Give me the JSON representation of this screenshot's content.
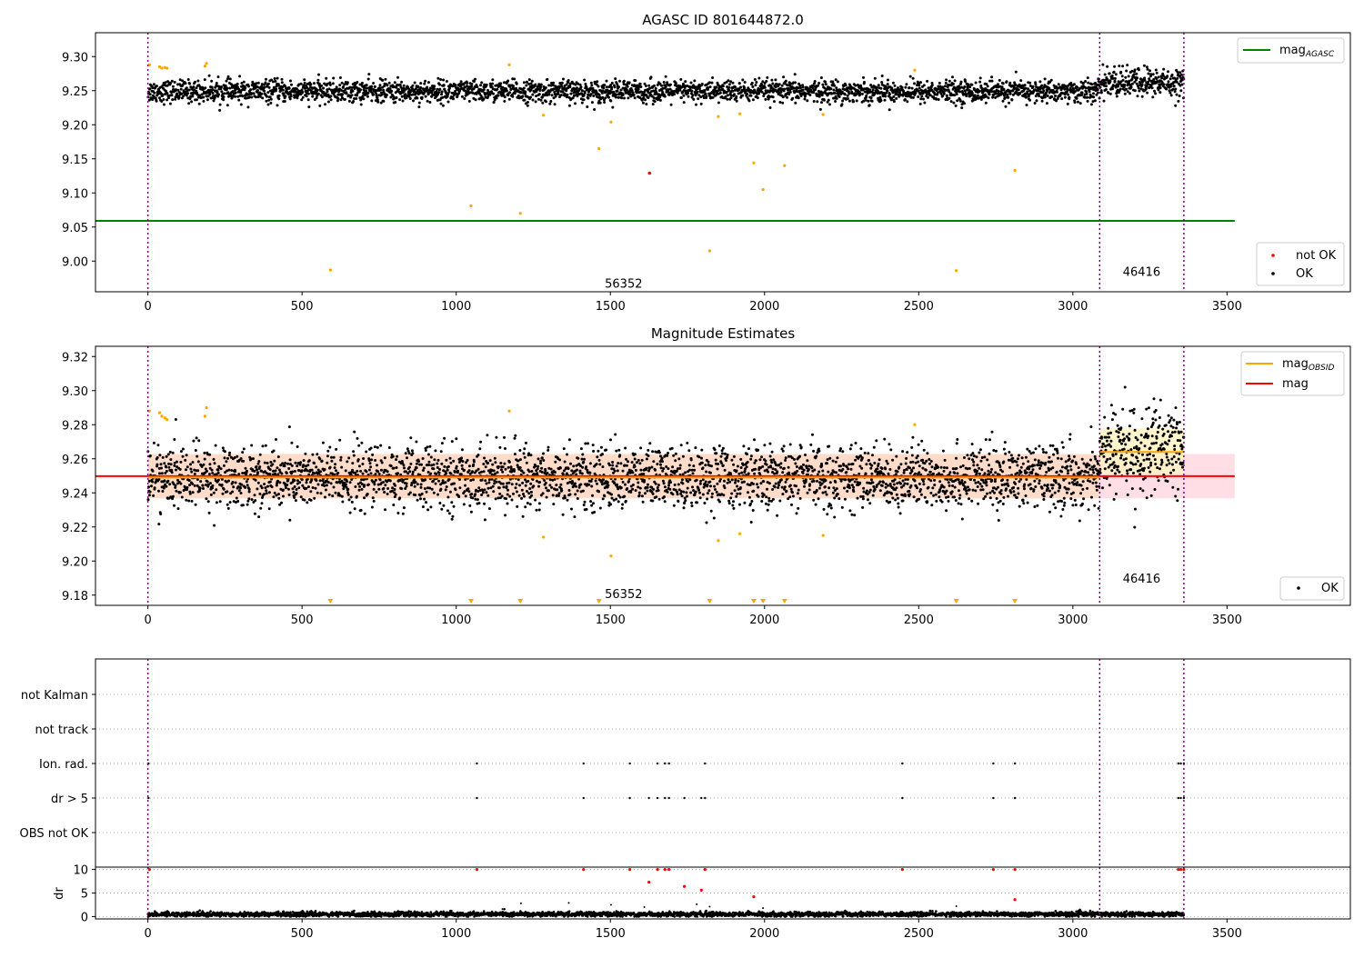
{
  "colors": {
    "ok": "#000000",
    "not_ok": "#ff0000",
    "flagged": "#ffa500",
    "agasc_line": "#008000",
    "mag_line": "#ff0000",
    "obsid_line": "#ffa500",
    "band": "#ffc0cb",
    "obsid_band": "#fff2c0",
    "divider": "#800080",
    "grid": "#b0b0b0"
  },
  "chart_data": [
    {
      "type": "scatter",
      "title": "AGASC ID 801644872.0",
      "xlabel": "",
      "ylabel": "",
      "xlim": [
        -170,
        3900
      ],
      "ylim": [
        8.955,
        9.335
      ],
      "x_ticks": [
        "0",
        "500",
        "1000",
        "1500",
        "2000",
        "2500",
        "3000",
        "3500"
      ],
      "y_ticks": [
        "9.00",
        "9.05",
        "9.10",
        "9.15",
        "9.20",
        "9.25",
        "9.30"
      ],
      "dividers_x": [
        0,
        3087,
        3360
      ],
      "segment_labels": [
        {
          "text": "56352",
          "x": 1543,
          "y": 8.968
        },
        {
          "text": "46416",
          "x": 3223,
          "y": 8.985
        }
      ],
      "reference_lines": [
        {
          "name": "mag_AGASC",
          "y": 9.059,
          "x_range": [
            -170,
            3525
          ]
        }
      ],
      "legend_top_right": [
        {
          "label_main": "mag",
          "label_sub": "AGASC",
          "kind": "line"
        }
      ],
      "legend_bottom_right": [
        {
          "label": "not OK",
          "kind": "marker"
        },
        {
          "label": "OK",
          "kind": "marker"
        }
      ],
      "series": [
        {
          "name": "OK",
          "segments": [
            {
              "x_range": [
                0,
                3087
              ],
              "mean": 9.249,
              "spread": 0.008
            },
            {
              "x_range": [
                3087,
                3360
              ],
              "mean": 9.262,
              "spread": 0.011
            }
          ]
        },
        {
          "name": "not OK",
          "points": [
            [
              1627,
              9.129
            ]
          ]
        },
        {
          "name": "flagged",
          "points": [
            [
              5,
              9.288
            ],
            [
              38,
              9.285
            ],
            [
              45,
              9.283
            ],
            [
              55,
              9.284
            ],
            [
              62,
              9.283
            ],
            [
              185,
              9.286
            ],
            [
              190,
              9.29
            ],
            [
              592,
              8.987
            ],
            [
              1048,
              9.081
            ],
            [
              1172,
              9.288
            ],
            [
              1208,
              9.07
            ],
            [
              1283,
              9.214
            ],
            [
              1463,
              9.165
            ],
            [
              1502,
              9.204
            ],
            [
              1822,
              9.015
            ],
            [
              1850,
              9.212
            ],
            [
              1920,
              9.216
            ],
            [
              1965,
              9.144
            ],
            [
              1995,
              9.105
            ],
            [
              2065,
              9.14
            ],
            [
              2190,
              9.215
            ],
            [
              2487,
              9.28
            ],
            [
              2622,
              8.986
            ],
            [
              2812,
              9.133
            ]
          ]
        }
      ]
    },
    {
      "type": "scatter",
      "title": "Magnitude Estimates",
      "xlabel": "",
      "ylabel": "",
      "xlim": [
        -170,
        3900
      ],
      "ylim": [
        9.174,
        9.326
      ],
      "x_ticks": [
        "0",
        "500",
        "1000",
        "1500",
        "2000",
        "2500",
        "3000",
        "3500"
      ],
      "y_ticks": [
        "9.18",
        "9.20",
        "9.22",
        "9.24",
        "9.26",
        "9.28",
        "9.30",
        "9.32"
      ],
      "dividers_x": [
        0,
        3087,
        3360
      ],
      "segment_labels": [
        {
          "text": "56352",
          "x": 1543,
          "y": 9.181
        },
        {
          "text": "46416",
          "x": 3223,
          "y": 9.19
        }
      ],
      "mag": 9.2498,
      "mag_band": [
        9.2368,
        9.2628
      ],
      "mag_obsid": [
        {
          "x_range": [
            0,
            3087
          ],
          "value": 9.249
        },
        {
          "x_range": [
            3087,
            3360
          ],
          "value": 9.264
        }
      ],
      "mag_obsid_band": [
        9.251,
        9.278
      ],
      "legend_top_right": [
        {
          "label_main": "mag",
          "label_sub": "OBSID",
          "kind": "line"
        },
        {
          "label_main": "mag",
          "label_sub": "",
          "kind": "line"
        }
      ],
      "legend_bottom_right": [
        {
          "label": "OK",
          "kind": "marker"
        }
      ],
      "offscale_markers_x": [
        592,
        1048,
        1208,
        1463,
        1822,
        1965,
        1995,
        2065,
        2622,
        2812
      ],
      "series": [
        {
          "name": "OK",
          "segments": [
            {
              "x_range": [
                0,
                3087
              ],
              "mean": 9.249,
              "spread": 0.009
            },
            {
              "x_range": [
                3087,
                3360
              ],
              "mean": 9.264,
              "spread": 0.013
            }
          ]
        },
        {
          "name": "flagged",
          "points": [
            [
              5,
              9.288
            ],
            [
              38,
              9.287
            ],
            [
              45,
              9.285
            ],
            [
              55,
              9.284
            ],
            [
              62,
              9.283
            ],
            [
              185,
              9.285
            ],
            [
              190,
              9.29
            ],
            [
              1172,
              9.288
            ],
            [
              1283,
              9.214
            ],
            [
              1502,
              9.203
            ],
            [
              1850,
              9.212
            ],
            [
              1920,
              9.216
            ],
            [
              2190,
              9.215
            ],
            [
              2487,
              9.28
            ]
          ]
        }
      ]
    },
    {
      "type": "scatter",
      "title": "",
      "xlabel": "",
      "ylabel": "",
      "xlim": [
        -170,
        3900
      ],
      "categories": [
        "not Kalman",
        "not track",
        "Ion. rad.",
        "dr > 5",
        "OBS not OK"
      ],
      "dividers_x": [
        0,
        3087,
        3360
      ],
      "series": [
        {
          "name": "Ion. rad.",
          "x": [
            2,
            1067,
            1413,
            1563,
            1653,
            1677,
            1690,
            1807,
            2447,
            2742,
            2812,
            3342,
            3350,
            3360
          ]
        },
        {
          "name": "dr > 5",
          "x": [
            2,
            1067,
            1413,
            1563,
            1625,
            1653,
            1677,
            1690,
            1740,
            1795,
            1807,
            2447,
            2742,
            2812,
            3342,
            3350,
            3360
          ]
        }
      ]
    },
    {
      "type": "scatter",
      "title": "",
      "xlabel": "",
      "ylabel": "dr",
      "xlim": [
        -170,
        3900
      ],
      "ylim": [
        -0.5,
        10.5
      ],
      "x_ticks": [
        "0",
        "500",
        "1000",
        "1500",
        "2000",
        "2500",
        "3000",
        "3500"
      ],
      "y_ticks": [
        "0",
        "5",
        "10"
      ],
      "dividers_x": [
        0,
        3087,
        3360
      ],
      "series": [
        {
          "name": "OK",
          "segments": [
            {
              "x_range": [
                0,
                3360
              ],
              "mean": 0.5,
              "spread": 0.25
            }
          ]
        },
        {
          "name": "not OK",
          "points": [
            [
              5,
              10
            ],
            [
              1067,
              10
            ],
            [
              1413,
              10
            ],
            [
              1563,
              10
            ],
            [
              1653,
              10
            ],
            [
              1677,
              10
            ],
            [
              1690,
              10
            ],
            [
              1807,
              10
            ],
            [
              2447,
              10
            ],
            [
              2742,
              10
            ],
            [
              2812,
              10
            ],
            [
              3342,
              10
            ],
            [
              3350,
              10
            ],
            [
              3360,
              10
            ],
            [
              1625,
              7.3
            ],
            [
              1740,
              6.4
            ],
            [
              1795,
              5.6
            ],
            [
              1965,
              4.2
            ],
            [
              2812,
              3.6
            ]
          ]
        },
        {
          "name": "OK-outliers",
          "points": [
            [
              1150,
              1.6
            ],
            [
              1210,
              2.8
            ],
            [
              1365,
              2.9
            ],
            [
              1502,
              2.5
            ],
            [
              1610,
              2.0
            ],
            [
              1780,
              2.6
            ],
            [
              1822,
              2.1
            ],
            [
              1995,
              1.8
            ],
            [
              2622,
              2.2
            ]
          ]
        }
      ]
    }
  ]
}
